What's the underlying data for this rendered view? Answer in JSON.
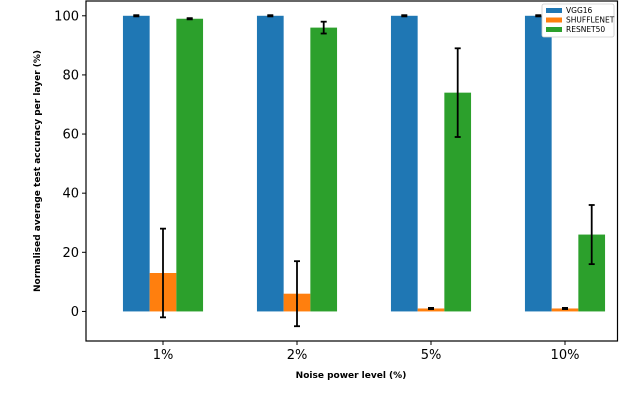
{
  "chart_data": {
    "type": "bar",
    "title": "",
    "xlabel": "Noise power level (%)",
    "ylabel": "Normalised average test accuracy per layer (%)",
    "categories": [
      "1%",
      "2%",
      "5%",
      "10%"
    ],
    "ylim": [
      -10,
      105
    ],
    "yticks": [
      0,
      20,
      40,
      60,
      80,
      100
    ],
    "grid": false,
    "legend_position": "top-right",
    "series": [
      {
        "name": "VGG16",
        "color": "#1f77b4",
        "values": [
          100,
          100,
          100,
          100
        ],
        "errors": [
          0.2,
          0.2,
          0.2,
          0.2
        ]
      },
      {
        "name": "SHUFFLENET",
        "color": "#ff7f0e",
        "values": [
          13,
          6,
          1,
          1
        ],
        "errors": [
          15,
          11,
          0.2,
          0.2
        ]
      },
      {
        "name": "RESNET50",
        "color": "#2ca02c",
        "values": [
          99,
          96,
          74,
          26
        ],
        "errors": [
          0.2,
          2,
          15,
          10
        ]
      }
    ]
  }
}
